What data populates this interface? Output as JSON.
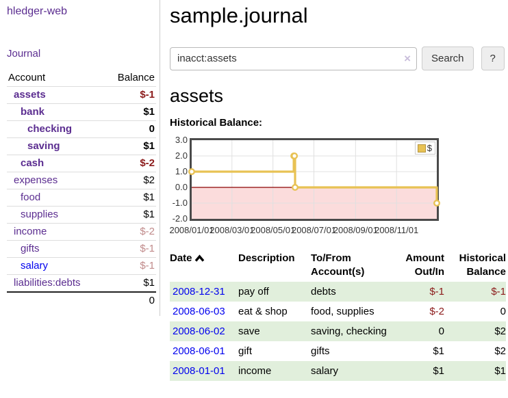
{
  "colors": {
    "link_purple": "#5b2d90",
    "link_blue": "#0000ee",
    "negative_strong": "#8b1a1a",
    "negative_soft": "#c08a8a",
    "row_green": "#e1efdc",
    "chart_gold": "#e8c254",
    "chart_gold_border": "#b3933e",
    "chart_negative_area": "#fbdcdc",
    "chart_zero_line": "#8b0000",
    "chart_border": "#4a4a4a",
    "chart_grid": "#e0e0e0",
    "button_bg": "#eeeeee",
    "button_border": "#cccccc",
    "sidebar_divider": "#cccccc",
    "row_border": "#dddddd"
  },
  "app": {
    "title": "hledger-web"
  },
  "sidebar": {
    "journal_link": "Journal",
    "accounts": {
      "headers": [
        "Account",
        "Balance"
      ],
      "rows": [
        {
          "name": "assets",
          "balance": "$-1",
          "level": 1,
          "bold": true,
          "balance_style": "neg-strong",
          "link": "purple"
        },
        {
          "name": "bank",
          "balance": "$1",
          "level": 2,
          "bold": true,
          "balance_style": "",
          "link": "purple"
        },
        {
          "name": "checking",
          "balance": "0",
          "level": 3,
          "bold": true,
          "balance_style": "",
          "link": "purple"
        },
        {
          "name": "saving",
          "balance": "$1",
          "level": 3,
          "bold": true,
          "balance_style": "",
          "link": "purple"
        },
        {
          "name": "cash",
          "balance": "$-2",
          "level": 2,
          "bold": true,
          "balance_style": "neg-strong",
          "link": "purple"
        },
        {
          "name": "expenses",
          "balance": "$2",
          "level": 1,
          "bold": false,
          "balance_style": "",
          "link": "purple"
        },
        {
          "name": "food",
          "balance": "$1",
          "level": 2,
          "bold": false,
          "balance_style": "",
          "link": "purple"
        },
        {
          "name": "supplies",
          "balance": "$1",
          "level": 2,
          "bold": false,
          "balance_style": "",
          "link": "purple"
        },
        {
          "name": "income",
          "balance": "$-2",
          "level": 1,
          "bold": false,
          "balance_style": "neg-soft",
          "link": "purple"
        },
        {
          "name": "gifts",
          "balance": "$-1",
          "level": 2,
          "bold": false,
          "balance_style": "neg-soft",
          "link": "purple"
        },
        {
          "name": "salary",
          "balance": "$-1",
          "level": 2,
          "bold": false,
          "balance_style": "neg-soft",
          "link": "blue"
        },
        {
          "name": "liabilities:debts",
          "balance": "$1",
          "level": 1,
          "bold": false,
          "balance_style": "",
          "link": "purple"
        }
      ],
      "total": "0"
    }
  },
  "main": {
    "title": "sample.journal",
    "search": {
      "value": "inacct:assets",
      "clear_icon": "×",
      "button_label": "Search",
      "help_label": "?"
    },
    "account_heading": "assets",
    "chart_label": "Historical Balance:"
  },
  "chart_data": {
    "type": "line",
    "step": true,
    "title": "Historical Balance:",
    "series": [
      {
        "name": "$",
        "points": [
          [
            "2008-01-01",
            1
          ],
          [
            "2008-06-01",
            2
          ],
          [
            "2008-06-02",
            2
          ],
          [
            "2008-06-03",
            0
          ],
          [
            "2008-12-31",
            -1
          ]
        ]
      }
    ],
    "xlim": [
      "2008-01-01",
      "2008-12-31"
    ],
    "ylim": [
      -2,
      3
    ],
    "yticks": [
      3,
      2,
      1,
      0,
      -1,
      -2
    ],
    "ytick_labels": [
      "3.0",
      "2.0",
      "1.0",
      "0.0",
      "-1.0",
      "-2.0"
    ],
    "xticks": [
      "2008-01-01",
      "2008-03-01",
      "2008-05-01",
      "2008-07-01",
      "2008-09-01",
      "2008-11-01"
    ],
    "xtick_labels": [
      "2008/01/01",
      "2008/03/01",
      "2008/05/01",
      "2008/07/01",
      "2008/09/01",
      "2008/11/01"
    ],
    "legend_position": "top-right",
    "grid": true,
    "negative_area_shaded": true,
    "zero_line": true
  },
  "register": {
    "headers": [
      "Date",
      "Description",
      "To/From Account(s)",
      "Amount Out/In",
      "Historical Balance"
    ],
    "sort_icon": "caret-up",
    "rows": [
      {
        "date": "2008-12-31",
        "description": "pay off",
        "accounts": "debts",
        "amount": "$-1",
        "balance": "$-1"
      },
      {
        "date": "2008-06-03",
        "description": "eat & shop",
        "accounts": "food, supplies",
        "amount": "$-2",
        "balance": "0"
      },
      {
        "date": "2008-06-02",
        "description": "save",
        "accounts": "saving, checking",
        "amount": "0",
        "balance": "$2"
      },
      {
        "date": "2008-06-01",
        "description": "gift",
        "accounts": "gifts",
        "amount": "$1",
        "balance": "$2"
      },
      {
        "date": "2008-01-01",
        "description": "income",
        "accounts": "salary",
        "amount": "$1",
        "balance": "$1"
      }
    ]
  }
}
